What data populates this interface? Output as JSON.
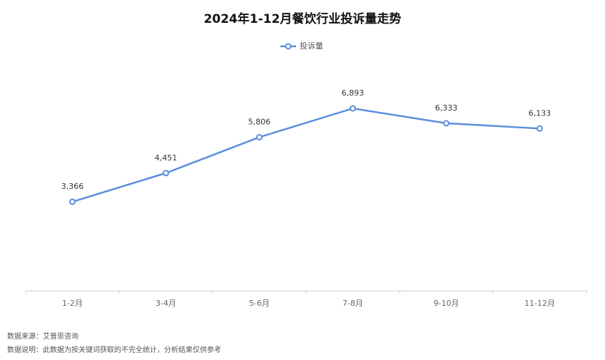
{
  "chart_data": {
    "type": "line",
    "title": "2024年1-12月餐饮行业投诉量走势",
    "categories": [
      "1-2月",
      "3-4月",
      "5-6月",
      "7-8月",
      "9-10月",
      "11-12月"
    ],
    "series": [
      {
        "name": "投诉量",
        "color": "#5b8ede",
        "values": [
          3366,
          4451,
          5806,
          6893,
          6333,
          6133
        ],
        "value_labels": [
          "3,366",
          "4,451",
          "5,806",
          "6,893",
          "6,333",
          "6,133"
        ]
      }
    ],
    "ylim": [
      0,
      8000
    ],
    "grid": false,
    "legend": "top"
  },
  "footer": {
    "source": "数据来源：艾普思咨询",
    "note": "数据说明：此数据为按关键词获取的不完全统计，分析结果仅供参考"
  }
}
